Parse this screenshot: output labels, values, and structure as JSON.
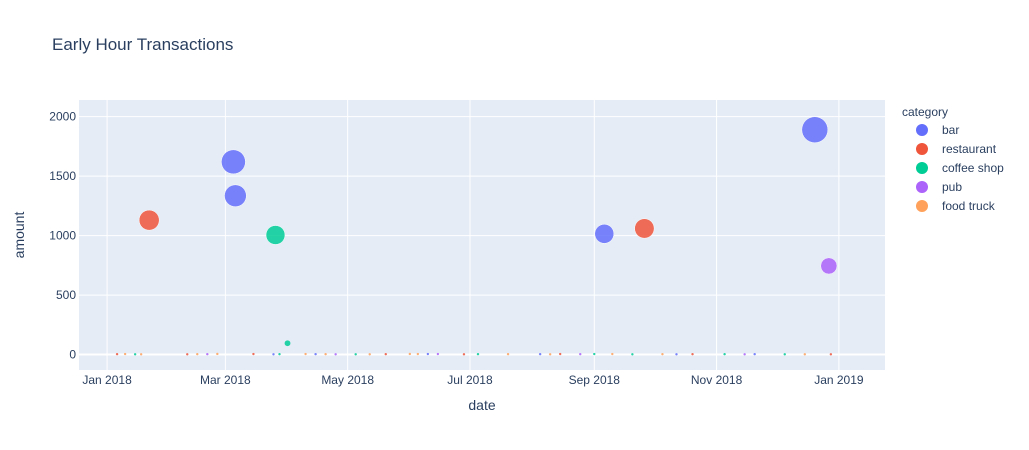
{
  "chart_data": {
    "type": "scatter",
    "title": "Early Hour Transactions",
    "xlabel": "date",
    "ylabel": "amount",
    "x_range": [
      "2017-12-18",
      "2019-01-24"
    ],
    "ylim": [
      -130,
      2140
    ],
    "x_tick_labels": [
      {
        "date": "2018-01-01",
        "label": "Jan 2018"
      },
      {
        "date": "2018-03-01",
        "label": "Mar 2018"
      },
      {
        "date": "2018-05-01",
        "label": "May 2018"
      },
      {
        "date": "2018-07-01",
        "label": "Jul 2018"
      },
      {
        "date": "2018-09-01",
        "label": "Sep 2018"
      },
      {
        "date": "2018-11-01",
        "label": "Nov 2018"
      },
      {
        "date": "2019-01-01",
        "label": "Jan 2019"
      }
    ],
    "y_ticks": [
      0,
      500,
      1000,
      1500,
      2000
    ],
    "grid": true,
    "legend": {
      "title": "category",
      "placement": "right"
    },
    "background_color": "#e5ecf6",
    "series": [
      {
        "name": "bar",
        "color": "#636efa",
        "points": [
          {
            "x": "2018-03-05",
            "y": 1620
          },
          {
            "x": "2018-03-06",
            "y": 1335
          },
          {
            "x": "2018-09-06",
            "y": 1015
          },
          {
            "x": "2018-12-20",
            "y": 1890
          },
          {
            "x": "2018-03-25",
            "y": 2
          },
          {
            "x": "2018-04-15",
            "y": 3
          },
          {
            "x": "2018-06-10",
            "y": 4
          },
          {
            "x": "2018-08-05",
            "y": 3
          },
          {
            "x": "2018-10-12",
            "y": 2
          },
          {
            "x": "2018-11-20",
            "y": 3
          }
        ]
      },
      {
        "name": "restaurant",
        "color": "#ef553b",
        "points": [
          {
            "x": "2018-01-22",
            "y": 1130
          },
          {
            "x": "2018-09-26",
            "y": 1060
          },
          {
            "x": "2018-01-06",
            "y": 3
          },
          {
            "x": "2018-02-10",
            "y": 2
          },
          {
            "x": "2018-03-15",
            "y": 4
          },
          {
            "x": "2018-05-20",
            "y": 3
          },
          {
            "x": "2018-06-28",
            "y": 2
          },
          {
            "x": "2018-08-15",
            "y": 4
          },
          {
            "x": "2018-10-20",
            "y": 3
          },
          {
            "x": "2018-12-28",
            "y": 2
          }
        ]
      },
      {
        "name": "coffee shop",
        "color": "#00cc96",
        "points": [
          {
            "x": "2018-03-26",
            "y": 1005
          },
          {
            "x": "2018-04-01",
            "y": 95
          },
          {
            "x": "2018-01-15",
            "y": 2
          },
          {
            "x": "2018-03-28",
            "y": 3
          },
          {
            "x": "2018-05-05",
            "y": 2
          },
          {
            "x": "2018-07-05",
            "y": 3
          },
          {
            "x": "2018-09-01",
            "y": 4
          },
          {
            "x": "2018-09-20",
            "y": 2
          },
          {
            "x": "2018-11-05",
            "y": 3
          },
          {
            "x": "2018-12-05",
            "y": 2
          }
        ]
      },
      {
        "name": "pub",
        "color": "#ab63fa",
        "points": [
          {
            "x": "2018-12-27",
            "y": 745
          },
          {
            "x": "2018-02-20",
            "y": 3
          },
          {
            "x": "2018-04-25",
            "y": 2
          },
          {
            "x": "2018-06-15",
            "y": 4
          },
          {
            "x": "2018-08-25",
            "y": 3
          },
          {
            "x": "2018-11-15",
            "y": 2
          }
        ]
      },
      {
        "name": "food truck",
        "color": "#ffa15a",
        "points": [
          {
            "x": "2018-01-10",
            "y": 4
          },
          {
            "x": "2018-01-18",
            "y": 2
          },
          {
            "x": "2018-02-15",
            "y": 3
          },
          {
            "x": "2018-02-25",
            "y": 5
          },
          {
            "x": "2018-04-10",
            "y": 4
          },
          {
            "x": "2018-04-20",
            "y": 3
          },
          {
            "x": "2018-05-12",
            "y": 2
          },
          {
            "x": "2018-06-01",
            "y": 5
          },
          {
            "x": "2018-06-05",
            "y": 4
          },
          {
            "x": "2018-07-20",
            "y": 3
          },
          {
            "x": "2018-08-10",
            "y": 2
          },
          {
            "x": "2018-09-10",
            "y": 4
          },
          {
            "x": "2018-10-05",
            "y": 3
          },
          {
            "x": "2018-12-15",
            "y": 2
          }
        ]
      }
    ]
  }
}
